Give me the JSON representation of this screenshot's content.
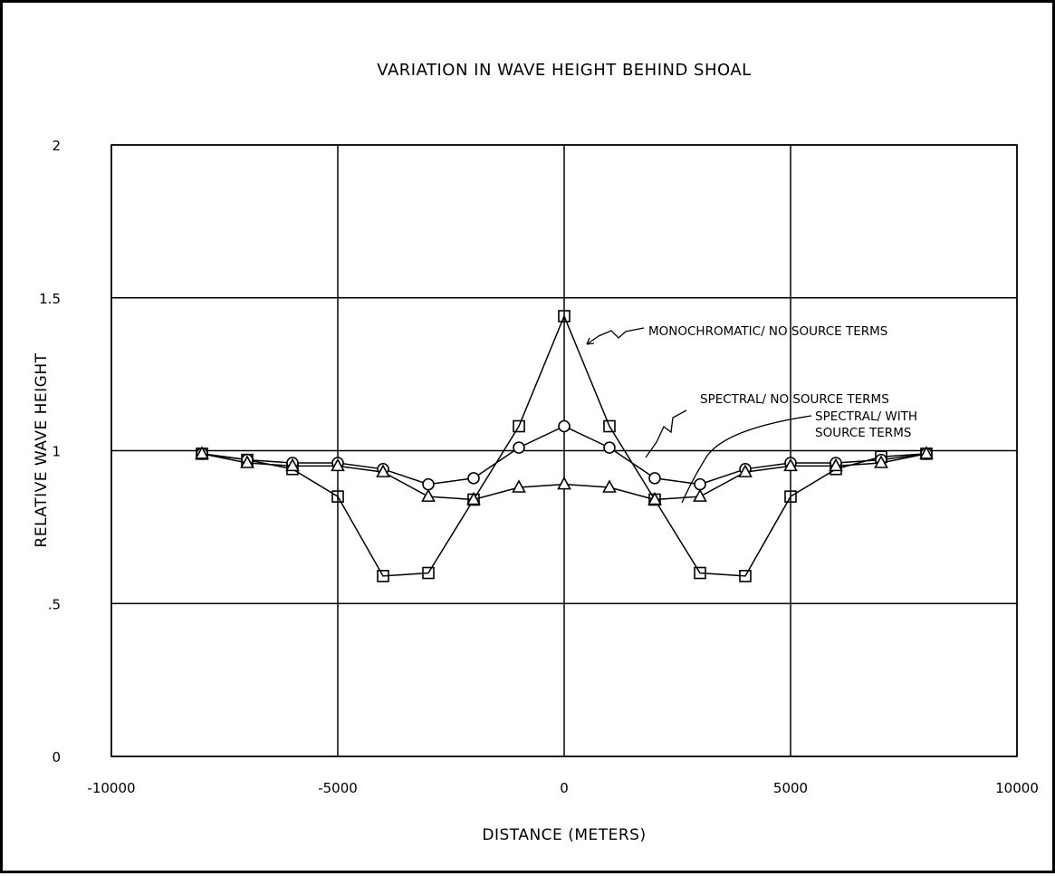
{
  "chart_data": {
    "type": "line",
    "title": "VARIATION IN WAVE HEIGHT BEHIND SHOAL",
    "xlabel": "DISTANCE (METERS)",
    "ylabel": "RELATIVE WAVE HEIGHT",
    "xlim": [
      -10000,
      10000
    ],
    "ylim": [
      0,
      2
    ],
    "x_ticks": [
      {
        "value": -10000,
        "label": "-10000"
      },
      {
        "value": -5000,
        "label": "-5000"
      },
      {
        "value": 0,
        "label": "0"
      },
      {
        "value": 5000,
        "label": "5000"
      },
      {
        "value": 10000,
        "label": "10000"
      }
    ],
    "y_ticks": [
      {
        "value": 0,
        "label": "0"
      },
      {
        "value": 0.5,
        "label": ".5"
      },
      {
        "value": 1,
        "label": "1"
      },
      {
        "value": 1.5,
        "label": "1.5"
      },
      {
        "value": 2,
        "label": "2"
      }
    ],
    "grid": true,
    "x": [
      -8000,
      -7000,
      -6000,
      -5000,
      -4000,
      -3000,
      -2000,
      -1000,
      0,
      1000,
      2000,
      3000,
      4000,
      5000,
      6000,
      7000,
      8000
    ],
    "series": [
      {
        "name": "MONOCHROMATIC/ NO SOURCE TERMS",
        "marker": "square",
        "values": [
          0.99,
          0.97,
          0.94,
          0.85,
          0.59,
          0.6,
          0.84,
          1.08,
          1.44,
          1.08,
          0.84,
          0.6,
          0.59,
          0.85,
          0.94,
          0.98,
          0.99
        ]
      },
      {
        "name": "SPECTRAL/ NO SOURCE TERMS",
        "marker": "circle",
        "values": [
          0.99,
          0.97,
          0.96,
          0.96,
          0.94,
          0.89,
          0.91,
          1.01,
          1.08,
          1.01,
          0.91,
          0.89,
          0.94,
          0.96,
          0.96,
          0.97,
          0.99
        ]
      },
      {
        "name": "SPECTRAL/ WITH SOURCE TERMS",
        "marker": "triangle",
        "values": [
          0.99,
          0.96,
          0.95,
          0.95,
          0.93,
          0.85,
          0.84,
          0.88,
          0.89,
          0.88,
          0.84,
          0.85,
          0.93,
          0.95,
          0.95,
          0.96,
          0.99
        ]
      }
    ],
    "annotations": [
      {
        "text": "MONOCHROMATIC/ NO SOURCE TERMS",
        "series": 0
      },
      {
        "text": "SPECTRAL/ NO SOURCE TERMS",
        "series": 1
      },
      {
        "lines": [
          "SPECTRAL/ WITH",
          "SOURCE TERMS"
        ],
        "series": 2
      }
    ]
  }
}
